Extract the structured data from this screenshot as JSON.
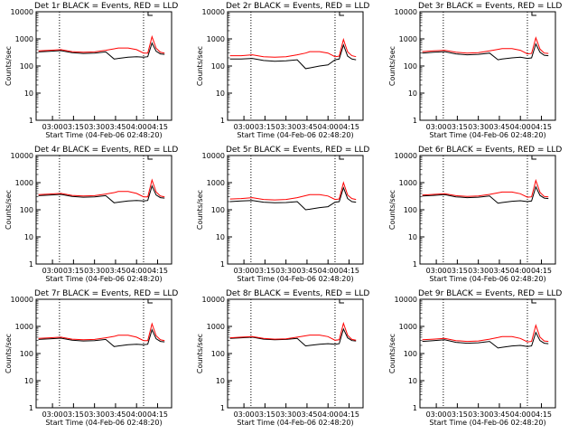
{
  "chart_data": [
    {
      "type": "line",
      "title": "Det 1r BLACK = Events, RED = LLD",
      "xlabel": "Start Time (04-Feb-06 02:48:20)",
      "ylabel": "Counts/sec",
      "yscale": "log",
      "ylim": [
        1,
        10000
      ],
      "x": [
        "02:50",
        "02:58",
        "03:06",
        "03:14",
        "03:22",
        "03:30",
        "03:38",
        "03:44",
        "03:47",
        "03:54",
        "04:00",
        "04:05",
        "04:08",
        "04:11",
        "04:14",
        "04:17",
        "04:20"
      ],
      "series": [
        {
          "name": "Events",
          "color": "#000000",
          "values": [
            330,
            350,
            370,
            310,
            290,
            300,
            330,
            180,
            190,
            210,
            220,
            210,
            220,
            700,
            350,
            280,
            270
          ]
        },
        {
          "name": "LLD",
          "color": "#ff0000",
          "values": [
            360,
            380,
            400,
            340,
            320,
            330,
            380,
            430,
            460,
            460,
            400,
            300,
            300,
            1200,
            450,
            320,
            300
          ]
        }
      ]
    },
    {
      "type": "line",
      "title": "Det 2r BLACK = Events, RED = LLD",
      "xlabel": "Start Time (04-Feb-06 02:48:20)",
      "ylabel": "Counts/sec",
      "yscale": "log",
      "ylim": [
        1,
        10000
      ],
      "x": [
        "02:50",
        "02:58",
        "03:06",
        "03:14",
        "03:22",
        "03:30",
        "03:38",
        "03:44",
        "03:47",
        "03:54",
        "04:00",
        "04:05",
        "04:08",
        "04:11",
        "04:14",
        "04:17",
        "04:20"
      ],
      "series": [
        {
          "name": "Events",
          "color": "#000000",
          "values": [
            180,
            180,
            190,
            160,
            150,
            155,
            170,
            80,
            85,
            100,
            110,
            170,
            180,
            600,
            230,
            180,
            170
          ]
        },
        {
          "name": "LLD",
          "color": "#ff0000",
          "values": [
            240,
            240,
            260,
            220,
            210,
            220,
            260,
            300,
            340,
            340,
            300,
            220,
            230,
            950,
            330,
            240,
            220
          ]
        }
      ]
    },
    {
      "type": "line",
      "title": "Det 3r BLACK = Events, RED = LLD",
      "xlabel": "Start Time (04-Feb-06 02:48:20)",
      "ylabel": "Counts/sec",
      "yscale": "log",
      "ylim": [
        1,
        10000
      ],
      "x": [
        "02:50",
        "02:58",
        "03:06",
        "03:14",
        "03:22",
        "03:30",
        "03:38",
        "03:44",
        "03:47",
        "03:54",
        "04:00",
        "04:05",
        "04:08",
        "04:11",
        "04:14",
        "04:17",
        "04:20"
      ],
      "series": [
        {
          "name": "Events",
          "color": "#000000",
          "values": [
            300,
            320,
            340,
            280,
            260,
            270,
            300,
            170,
            180,
            200,
            210,
            190,
            200,
            650,
            320,
            250,
            240
          ]
        },
        {
          "name": "LLD",
          "color": "#ff0000",
          "values": [
            340,
            360,
            380,
            320,
            300,
            310,
            360,
            410,
            440,
            440,
            380,
            280,
            290,
            1100,
            420,
            300,
            290
          ]
        }
      ]
    },
    {
      "type": "line",
      "title": "Det 4r BLACK = Events, RED = LLD",
      "xlabel": "Start Time (04-Feb-06 02:48:20)",
      "ylabel": "Counts/sec",
      "yscale": "log",
      "ylim": [
        1,
        10000
      ],
      "x": [
        "02:50",
        "02:58",
        "03:06",
        "03:14",
        "03:22",
        "03:30",
        "03:38",
        "03:44",
        "03:47",
        "03:54",
        "04:00",
        "04:05",
        "04:08",
        "04:11",
        "04:14",
        "04:17",
        "04:20"
      ],
      "series": [
        {
          "name": "Events",
          "color": "#000000",
          "values": [
            330,
            350,
            370,
            310,
            290,
            300,
            330,
            180,
            190,
            210,
            220,
            210,
            220,
            750,
            350,
            280,
            270
          ]
        },
        {
          "name": "LLD",
          "color": "#ff0000",
          "values": [
            360,
            380,
            400,
            340,
            320,
            330,
            380,
            430,
            470,
            470,
            400,
            300,
            300,
            1250,
            450,
            320,
            300
          ]
        }
      ]
    },
    {
      "type": "line",
      "title": "Det 5r BLACK = Events, RED = LLD",
      "xlabel": "Start Time (04-Feb-06 02:48:20)",
      "ylabel": "Counts/sec",
      "yscale": "log",
      "ylim": [
        1,
        10000
      ],
      "x": [
        "02:50",
        "02:58",
        "03:06",
        "03:14",
        "03:22",
        "03:30",
        "03:38",
        "03:44",
        "03:47",
        "03:54",
        "04:00",
        "04:05",
        "04:08",
        "04:11",
        "04:14",
        "04:17",
        "04:20"
      ],
      "series": [
        {
          "name": "Events",
          "color": "#000000",
          "values": [
            200,
            210,
            220,
            190,
            180,
            185,
            200,
            100,
            105,
            120,
            130,
            190,
            200,
            650,
            260,
            200,
            190
          ]
        },
        {
          "name": "LLD",
          "color": "#ff0000",
          "values": [
            250,
            260,
            280,
            240,
            230,
            240,
            280,
            330,
            360,
            360,
            320,
            240,
            250,
            1000,
            350,
            260,
            240
          ]
        }
      ]
    },
    {
      "type": "line",
      "title": "Det 6r BLACK = Events, RED = LLD",
      "xlabel": "Start Time (04-Feb-06 02:48:20)",
      "ylabel": "Counts/sec",
      "yscale": "log",
      "ylim": [
        1,
        10000
      ],
      "x": [
        "02:50",
        "02:58",
        "03:06",
        "03:14",
        "03:22",
        "03:30",
        "03:38",
        "03:44",
        "03:47",
        "03:54",
        "04:00",
        "04:05",
        "04:08",
        "04:11",
        "04:14",
        "04:17",
        "04:20"
      ],
      "series": [
        {
          "name": "Events",
          "color": "#000000",
          "values": [
            320,
            340,
            360,
            300,
            280,
            290,
            320,
            175,
            185,
            205,
            215,
            200,
            210,
            700,
            340,
            270,
            260
          ]
        },
        {
          "name": "LLD",
          "color": "#ff0000",
          "values": [
            350,
            370,
            390,
            330,
            310,
            320,
            370,
            420,
            450,
            450,
            390,
            290,
            300,
            1200,
            440,
            310,
            300
          ]
        }
      ]
    },
    {
      "type": "line",
      "title": "Det 7r BLACK = Events, RED = LLD",
      "xlabel": "Start Time (04-Feb-06 02:48:20)",
      "ylabel": "Counts/sec",
      "yscale": "log",
      "ylim": [
        1,
        10000
      ],
      "x": [
        "02:50",
        "02:58",
        "03:06",
        "03:14",
        "03:22",
        "03:30",
        "03:38",
        "03:44",
        "03:47",
        "03:54",
        "04:00",
        "04:05",
        "04:08",
        "04:11",
        "04:14",
        "04:17",
        "04:20"
      ],
      "series": [
        {
          "name": "Events",
          "color": "#000000",
          "values": [
            330,
            350,
            370,
            310,
            290,
            300,
            330,
            180,
            190,
            210,
            220,
            210,
            220,
            750,
            350,
            280,
            270
          ]
        },
        {
          "name": "LLD",
          "color": "#ff0000",
          "values": [
            360,
            380,
            400,
            340,
            320,
            330,
            380,
            430,
            470,
            470,
            400,
            300,
            300,
            1250,
            450,
            320,
            300
          ]
        }
      ]
    },
    {
      "type": "line",
      "title": "Det 8r BLACK = Events, RED = LLD",
      "xlabel": "Start Time (04-Feb-06 02:48:20)",
      "ylabel": "Counts/sec",
      "yscale": "log",
      "ylim": [
        1,
        10000
      ],
      "x": [
        "02:50",
        "02:58",
        "03:06",
        "03:14",
        "03:22",
        "03:30",
        "03:38",
        "03:44",
        "03:47",
        "03:54",
        "04:00",
        "04:05",
        "04:08",
        "04:11",
        "04:14",
        "04:17",
        "04:20"
      ],
      "series": [
        {
          "name": "Events",
          "color": "#000000",
          "values": [
            360,
            380,
            400,
            340,
            320,
            330,
            360,
            190,
            200,
            220,
            230,
            220,
            230,
            800,
            380,
            300,
            290
          ]
        },
        {
          "name": "LLD",
          "color": "#ff0000",
          "values": [
            380,
            400,
            420,
            360,
            340,
            350,
            400,
            450,
            480,
            480,
            420,
            310,
            320,
            1300,
            470,
            330,
            310
          ]
        }
      ]
    },
    {
      "type": "line",
      "title": "Det 9r BLACK = Events, RED = LLD",
      "xlabel": "Start Time (04-Feb-06 02:48:20)",
      "ylabel": "Counts/sec",
      "yscale": "log",
      "ylim": [
        1,
        10000
      ],
      "x": [
        "02:50",
        "02:58",
        "03:06",
        "03:14",
        "03:22",
        "03:30",
        "03:38",
        "03:44",
        "03:47",
        "03:54",
        "04:00",
        "04:05",
        "04:08",
        "04:11",
        "04:14",
        "04:17",
        "04:20"
      ],
      "series": [
        {
          "name": "Events",
          "color": "#000000",
          "values": [
            280,
            300,
            320,
            260,
            240,
            250,
            280,
            160,
            170,
            190,
            200,
            180,
            190,
            600,
            300,
            240,
            230
          ]
        },
        {
          "name": "LLD",
          "color": "#ff0000",
          "values": [
            320,
            340,
            360,
            300,
            280,
            290,
            340,
            390,
            420,
            420,
            360,
            270,
            280,
            1100,
            400,
            290,
            280
          ]
        }
      ]
    }
  ],
  "x_ticks": [
    "03:00",
    "03:15",
    "03:30",
    "03:45",
    "04:00",
    "04:15"
  ],
  "y_ticks": [
    "1",
    "10",
    "100",
    "1000",
    "10000"
  ],
  "x_range": [
    "02:48:20",
    "04:25"
  ],
  "vlines": [
    "03:05",
    "04:05"
  ]
}
